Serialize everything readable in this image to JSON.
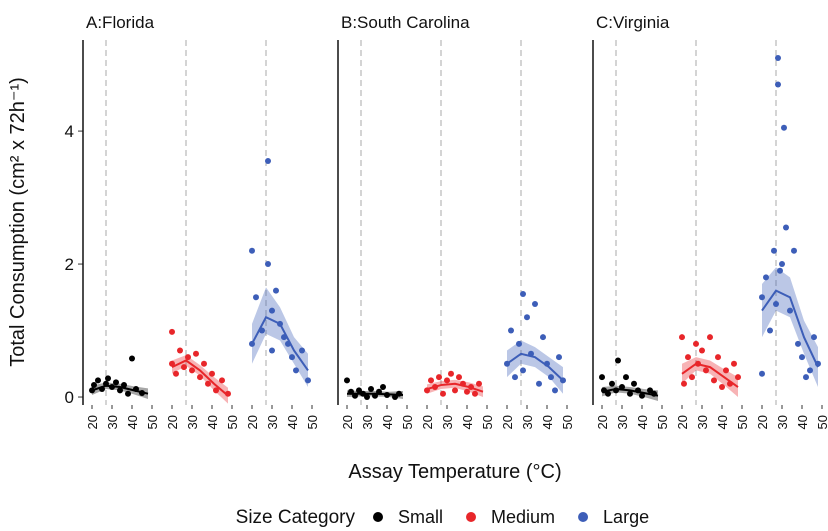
{
  "chart_data": {
    "type": "scatter",
    "ylabel": "Total Consumption (cm² x 72h⁻¹)",
    "xlabel": "Assay Temperature (°C)",
    "legend_title": "Size Category",
    "ylim": [
      -0.12,
      5.37
    ],
    "yticks": [
      0,
      2,
      4
    ],
    "xlim": [
      20,
      50
    ],
    "xticks": [
      20,
      30,
      40,
      50
    ],
    "vline": 27,
    "panels": [
      {
        "title": "A:Florida",
        "series": [
          {
            "name": "Small",
            "color": "#000000",
            "x": [
              20,
              21,
              23,
              25,
              27,
              28,
              30,
              32,
              34,
              36,
              38,
              40,
              42,
              45
            ],
            "values": [
              0.1,
              0.18,
              0.25,
              0.12,
              0.2,
              0.28,
              0.15,
              0.22,
              0.1,
              0.18,
              0.05,
              0.58,
              0.12,
              0.06
            ],
            "fit": {
              "x": [
                20,
                27,
                34,
                41,
                48
              ],
              "values": [
                0.1,
                0.17,
                0.15,
                0.1,
                0.05
              ],
              "lower": [
                0.03,
                0.12,
                0.1,
                0.04,
                -0.03
              ],
              "upper": [
                0.17,
                0.22,
                0.2,
                0.16,
                0.13
              ]
            }
          },
          {
            "name": "Medium",
            "color": "#e8262a",
            "x": [
              20,
              20,
              22,
              24,
              26,
              28,
              30,
              32,
              34,
              36,
              38,
              40,
              42,
              45,
              48
            ],
            "values": [
              0.98,
              0.5,
              0.35,
              0.7,
              0.45,
              0.6,
              0.4,
              0.65,
              0.3,
              0.5,
              0.2,
              0.35,
              0.1,
              0.25,
              0.05
            ],
            "fit": {
              "x": [
                20,
                27,
                34,
                41,
                48
              ],
              "values": [
                0.45,
                0.55,
                0.4,
                0.2,
                0.02
              ],
              "lower": [
                0.35,
                0.47,
                0.32,
                0.1,
                -0.1
              ],
              "upper": [
                0.55,
                0.63,
                0.48,
                0.3,
                0.14
              ]
            }
          },
          {
            "name": "Large",
            "color": "#3d5eb8",
            "x": [
              20,
              20,
              22,
              25,
              28,
              28,
              30,
              30,
              32,
              34,
              36,
              38,
              40,
              42,
              45,
              48
            ],
            "values": [
              2.2,
              0.8,
              1.5,
              1.0,
              3.55,
              2.0,
              1.3,
              0.7,
              1.6,
              1.1,
              0.9,
              0.8,
              0.6,
              0.4,
              0.7,
              0.25
            ],
            "fit": {
              "x": [
                20,
                27,
                34,
                41,
                48
              ],
              "values": [
                0.8,
                1.2,
                1.1,
                0.7,
                0.4
              ],
              "lower": [
                0.5,
                0.95,
                0.85,
                0.5,
                0.15
              ],
              "upper": [
                1.1,
                1.65,
                1.35,
                0.9,
                0.65
              ]
            }
          }
        ]
      },
      {
        "title": "B:South Carolina",
        "series": [
          {
            "name": "Small",
            "color": "#000000",
            "x": [
              20,
              22,
              24,
              26,
              28,
              30,
              32,
              34,
              36,
              38,
              40,
              44,
              46
            ],
            "values": [
              0.25,
              0.08,
              0.02,
              0.1,
              0.05,
              0.0,
              0.12,
              0.02,
              0.08,
              0.15,
              0.03,
              0.0,
              0.05
            ],
            "fit": {
              "x": [
                20,
                27,
                34,
                41,
                48
              ],
              "values": [
                0.05,
                0.05,
                0.05,
                0.04,
                0.03
              ],
              "lower": [
                0,
                0.01,
                0.01,
                0,
                -0.03
              ],
              "upper": [
                0.1,
                0.09,
                0.09,
                0.08,
                0.09
              ]
            }
          },
          {
            "name": "Medium",
            "color": "#e8262a",
            "x": [
              20,
              22,
              24,
              26,
              28,
              30,
              32,
              34,
              36,
              38,
              40,
              42,
              44,
              46
            ],
            "values": [
              0.1,
              0.25,
              0.15,
              0.3,
              0.05,
              0.25,
              0.35,
              0.1,
              0.3,
              0.2,
              0.08,
              0.15,
              0.05,
              0.2
            ],
            "fit": {
              "x": [
                20,
                27,
                34,
                41,
                48
              ],
              "values": [
                0.12,
                0.18,
                0.2,
                0.15,
                0.08
              ],
              "lower": [
                0.05,
                0.12,
                0.14,
                0.08,
                0
              ],
              "upper": [
                0.19,
                0.24,
                0.26,
                0.22,
                0.16
              ]
            }
          },
          {
            "name": "Large",
            "color": "#3d5eb8",
            "x": [
              20,
              22,
              24,
              26,
              28,
              28,
              30,
              32,
              34,
              36,
              38,
              40,
              42,
              44,
              46,
              48
            ],
            "values": [
              0.5,
              1.0,
              0.3,
              0.8,
              1.55,
              0.4,
              1.2,
              0.65,
              1.4,
              0.2,
              0.9,
              0.5,
              0.3,
              0.1,
              0.6,
              0.25
            ],
            "fit": {
              "x": [
                20,
                27,
                34,
                41,
                48
              ],
              "values": [
                0.5,
                0.65,
                0.6,
                0.45,
                0.25
              ],
              "lower": [
                0.3,
                0.5,
                0.45,
                0.3,
                0.05
              ],
              "upper": [
                0.7,
                0.85,
                0.75,
                0.6,
                0.45
              ]
            }
          }
        ]
      },
      {
        "title": "C:Virginia",
        "series": [
          {
            "name": "Small",
            "color": "#000000",
            "x": [
              20,
              21,
              23,
              25,
              27,
              28,
              30,
              32,
              34,
              36,
              38,
              40,
              44,
              46
            ],
            "values": [
              0.3,
              0.1,
              0.05,
              0.2,
              0.1,
              0.55,
              0.15,
              0.3,
              0.05,
              0.2,
              0.1,
              0.02,
              0.1,
              0.05
            ],
            "fit": {
              "x": [
                20,
                27,
                34,
                41,
                48
              ],
              "values": [
                0.08,
                0.12,
                0.1,
                0.06,
                0.02
              ],
              "lower": [
                0.01,
                0.07,
                0.05,
                0,
                -0.06
              ],
              "upper": [
                0.15,
                0.17,
                0.15,
                0.12,
                0.1
              ]
            }
          },
          {
            "name": "Medium",
            "color": "#e8262a",
            "x": [
              20,
              21,
              23,
              25,
              27,
              28,
              30,
              32,
              34,
              36,
              38,
              40,
              42,
              44,
              46,
              48
            ],
            "values": [
              0.9,
              0.2,
              0.6,
              0.3,
              0.8,
              0.5,
              0.7,
              0.4,
              0.9,
              0.25,
              0.6,
              0.15,
              0.4,
              0.2,
              0.5,
              0.3
            ],
            "fit": {
              "x": [
                20,
                27,
                34,
                41,
                48
              ],
              "values": [
                0.35,
                0.5,
                0.45,
                0.3,
                0.15
              ],
              "lower": [
                0.2,
                0.4,
                0.35,
                0.18,
                0
              ],
              "upper": [
                0.5,
                0.6,
                0.55,
                0.42,
                0.3
              ]
            }
          },
          {
            "name": "Large",
            "color": "#3d5eb8",
            "x": [
              20,
              20,
              22,
              24,
              26,
              27,
              28,
              28,
              29,
              30,
              31,
              32,
              34,
              36,
              38,
              40,
              42,
              44,
              46,
              48
            ],
            "values": [
              1.5,
              0.35,
              1.8,
              1.0,
              2.2,
              1.4,
              5.1,
              4.7,
              1.9,
              2.0,
              4.05,
              2.55,
              1.3,
              2.2,
              0.8,
              0.6,
              0.3,
              0.4,
              0.9,
              0.5
            ],
            "fit": {
              "x": [
                20,
                27,
                34,
                41,
                48
              ],
              "values": [
                1.3,
                1.6,
                1.5,
                0.9,
                0.45
              ],
              "lower": [
                0.9,
                1.3,
                1.2,
                0.65,
                0.15
              ],
              "upper": [
                1.7,
                1.95,
                1.8,
                1.15,
                0.75
              ]
            }
          }
        ]
      }
    ]
  }
}
